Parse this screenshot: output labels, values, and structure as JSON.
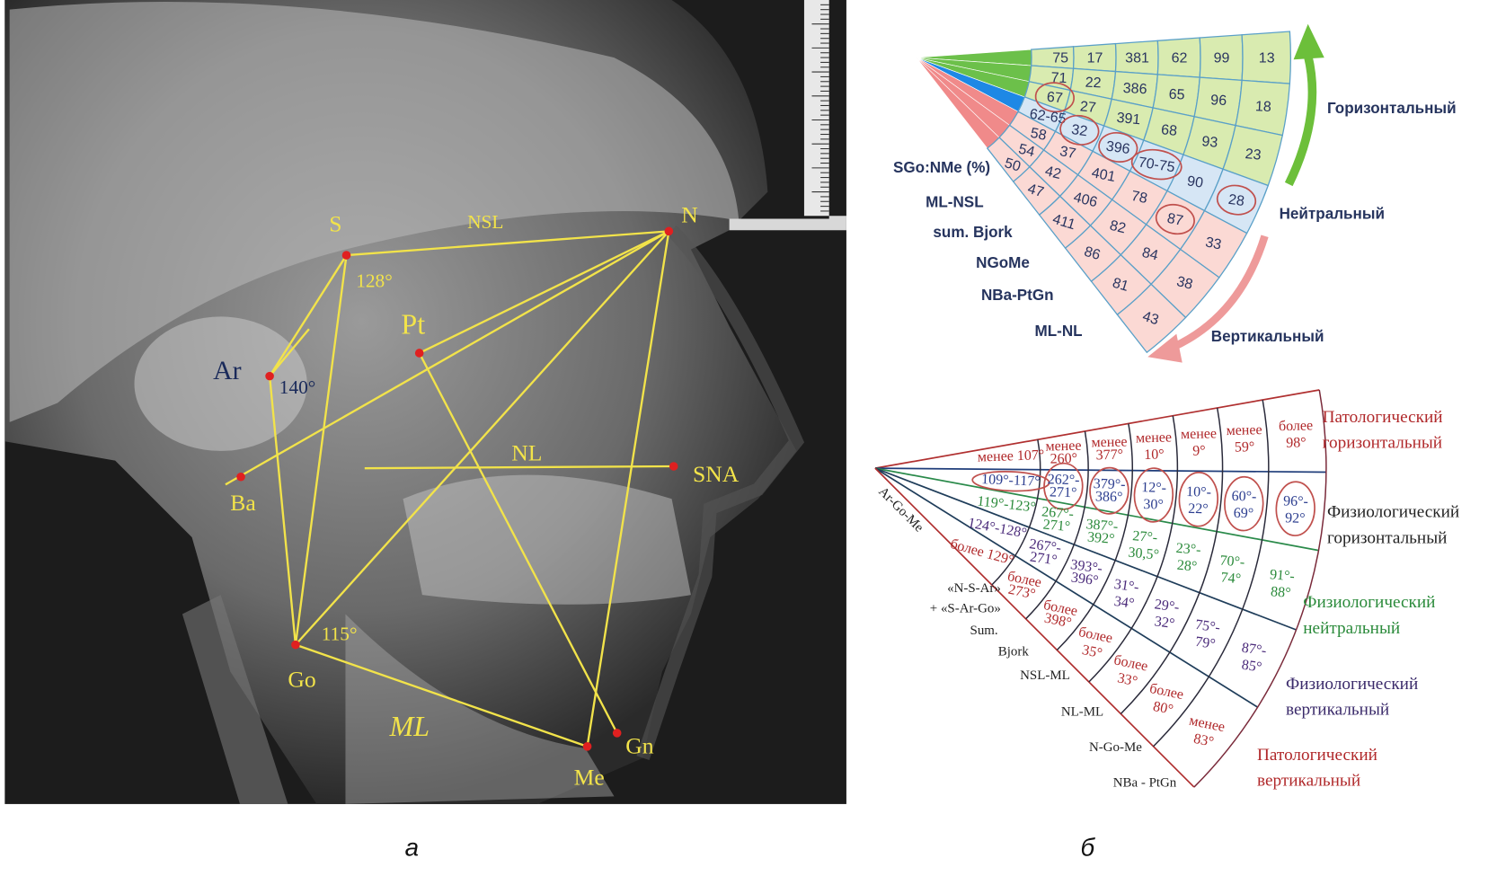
{
  "panel_labels": {
    "a": "а",
    "b": "б"
  },
  "xray": {
    "labels": {
      "S": "S",
      "NSL": "NSL",
      "N": "N",
      "angle_S": "128°",
      "Pt": "Pt",
      "Ar": "Ar",
      "angle_Ar": "140°",
      "NL": "NL",
      "SNA": "SNA",
      "Ba": "Ba",
      "angle_Go": "115°",
      "Go": "Go",
      "ML": "ML",
      "Gn": "Gn",
      "Me": "Me"
    },
    "colors": {
      "lines": "#f2e34a",
      "points": "#e02020"
    }
  },
  "top_fan": {
    "row_labels": [
      "SGo:NMe (%)",
      "ML-NSL",
      "sum. Bjork",
      "NGoMe",
      "NBa-PtGn",
      "ML-NL"
    ],
    "categories": [
      "Горизонтальный",
      "Нейтральный",
      "Вертикальный"
    ],
    "columns": [
      [
        "75",
        "71",
        "67",
        "62-65",
        "58",
        "54",
        "50"
      ],
      [
        "17",
        "22",
        "27",
        "32",
        "37",
        "42",
        "47"
      ],
      [
        "381",
        "386",
        "391",
        "396",
        "401",
        "406",
        "411"
      ],
      [
        "62",
        "65",
        "68",
        "70-75",
        "78",
        "82",
        "86"
      ],
      [
        "99",
        "96",
        "93",
        "90",
        "87",
        "84",
        "81"
      ],
      [
        "13",
        "18",
        "23",
        "28",
        "33",
        "38",
        "43"
      ]
    ],
    "circled": [
      [
        0,
        2
      ],
      [
        1,
        3
      ],
      [
        2,
        3
      ],
      [
        3,
        3
      ],
      [
        4,
        4
      ],
      [
        5,
        3
      ]
    ],
    "colors": {
      "horizontal": "#d9ebb0",
      "neutral": "#d6e6f5",
      "vertical": "#fbd9d4",
      "green_arrow": "#6cbf3a",
      "pink_arrow": "#ee9a9a"
    }
  },
  "bottom_fan": {
    "column_labels": [
      [
        "Ar-Go-Me"
      ],
      [
        "«N-S-Ar»",
        "+ «S-Ar-Go»"
      ],
      [
        "Sum.",
        "Bjork"
      ],
      [
        "NSL-ML"
      ],
      [
        "NL-ML"
      ],
      [
        "N-Go-Me"
      ],
      [
        "NBa - PtGn"
      ]
    ],
    "categories": [
      {
        "lines": [
          "Патологический",
          "горизонтальный"
        ],
        "color": "#b0282a"
      },
      {
        "lines": [
          "Физиологический",
          "горизонтальный"
        ],
        "color": "#222222"
      },
      {
        "lines": [
          "Физиологический",
          "нейтральный"
        ],
        "color": "#2a8a3a"
      },
      {
        "lines": [
          "Физиологический",
          "вертикальный"
        ],
        "color": "#3a2a6a"
      },
      {
        "lines": [
          "Патологический",
          "вертикальный"
        ],
        "color": "#b0282a"
      }
    ],
    "columns": [
      [
        [
          "менее 107°"
        ],
        [
          "109°-117°"
        ],
        [
          "119°-123°"
        ],
        [
          "124°-128°"
        ],
        [
          "более 129°"
        ]
      ],
      [
        [
          "менее",
          "260°"
        ],
        [
          "262°-",
          "271°"
        ],
        [
          "267°-",
          "271°"
        ],
        [
          "267°-",
          "271°"
        ],
        [
          "более",
          "273°"
        ]
      ],
      [
        [
          "менее",
          "377°"
        ],
        [
          "379°-",
          "386°"
        ],
        [
          "387°-",
          "392°"
        ],
        [
          "393°-",
          "396°"
        ],
        [
          "более",
          "398°"
        ]
      ],
      [
        [
          "менее",
          "10°"
        ],
        [
          "12°-",
          "30°"
        ],
        [
          "27°-",
          "30,5°"
        ],
        [
          "31°-",
          "34°"
        ],
        [
          "более",
          "35°"
        ]
      ],
      [
        [
          "менее",
          "9°"
        ],
        [
          "10°-",
          "22°"
        ],
        [
          "23°-",
          "28°"
        ],
        [
          "29°-",
          "32°"
        ],
        [
          "более",
          "33°"
        ]
      ],
      [
        [
          "менее",
          "59°"
        ],
        [
          "60°-",
          "69°"
        ],
        [
          "70°-",
          "74°"
        ],
        [
          "75°-",
          "79°"
        ],
        [
          "более",
          "80°"
        ]
      ],
      [
        [
          "более",
          "98°"
        ],
        [
          "96°-",
          "92°"
        ],
        [
          "91°-",
          "88°"
        ],
        [
          "87°-",
          "85°"
        ],
        [
          "менее",
          "83°"
        ]
      ]
    ],
    "sector_text_colors": [
      "#b0282a",
      "#2b3d8f",
      "#2a8a3a",
      "#4a2a7a",
      "#b0282a"
    ],
    "circled_sector": 1
  }
}
